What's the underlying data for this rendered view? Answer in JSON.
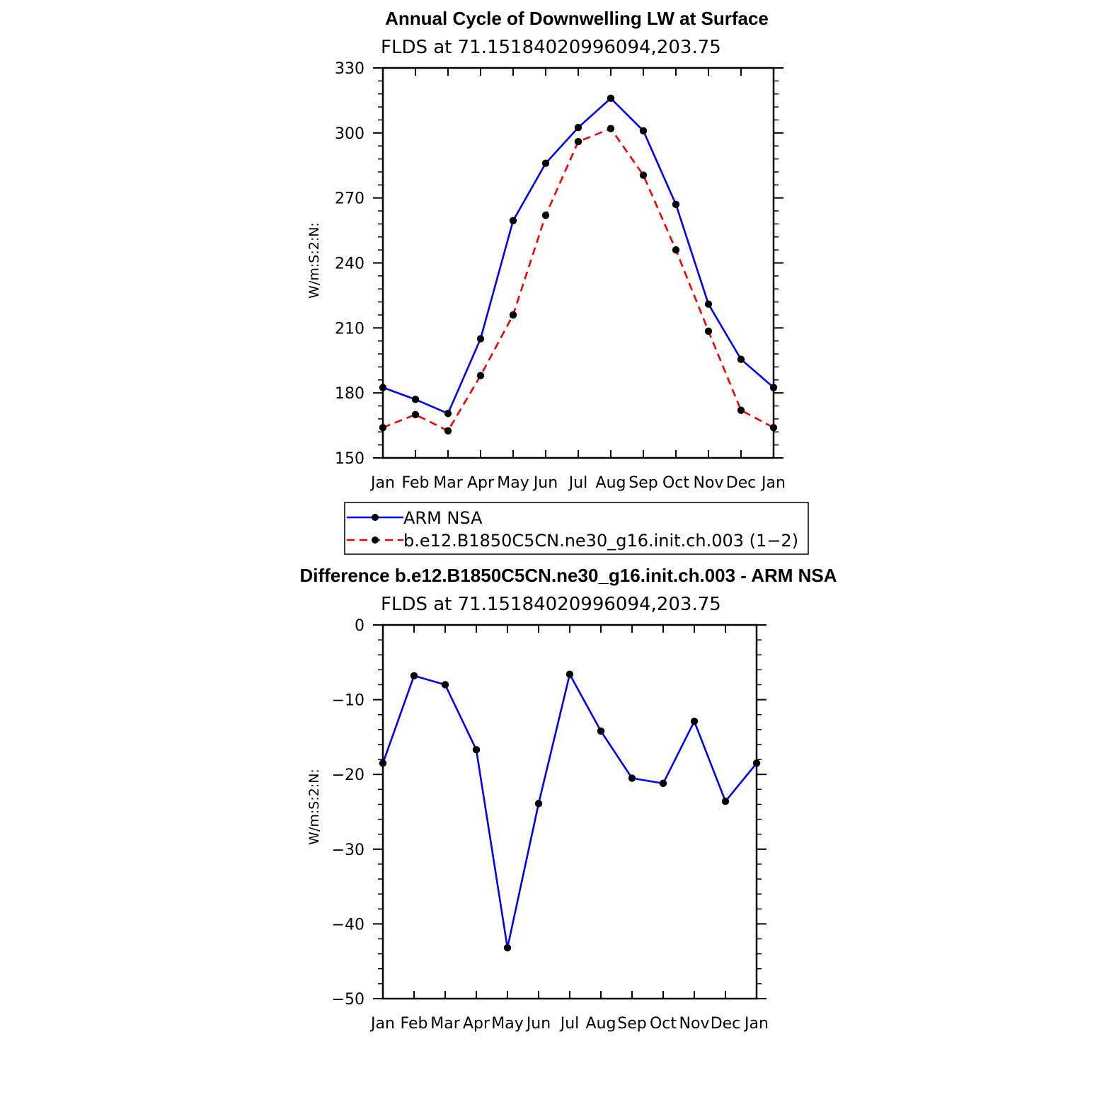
{
  "chart_data": [
    {
      "type": "line",
      "title": "Annual Cycle of Downwelling LW at Surface",
      "subtitle": "FLDS  at  71.15184020996094,203.75",
      "ylabel": "W/m:S:2:N:",
      "xlabel": "",
      "categories": [
        "Jan",
        "Feb",
        "Mar",
        "Apr",
        "May",
        "Jun",
        "Jul",
        "Aug",
        "Sep",
        "Oct",
        "Nov",
        "Dec",
        "Jan"
      ],
      "ylim": [
        150,
        330
      ],
      "yticks": [
        150,
        180,
        210,
        240,
        270,
        300,
        330
      ],
      "yticklabels": [
        "150",
        "180",
        "210",
        "240",
        "270",
        "300",
        "330"
      ],
      "grid": false,
      "series": [
        {
          "name": "ARM  NSA",
          "color": "#0000ee",
          "dash": "solid",
          "values": [
            182.5,
            177,
            170.5,
            205,
            259.5,
            286,
            302.5,
            316,
            301,
            267,
            221,
            195.5,
            182.5
          ]
        },
        {
          "name": "b.e12.B1850C5CN.ne30_g16.init.ch.003  (1−2)",
          "color": "#ee0000",
          "dash": "dashed",
          "values": [
            164,
            170,
            162.5,
            188,
            216,
            262,
            296,
            302,
            280.5,
            246,
            208.5,
            172,
            164
          ]
        }
      ],
      "legend": {
        "placement": "below",
        "entries": [
          "ARM  NSA",
          "b.e12.B1850C5CN.ne30_g16.init.ch.003  (1−2)"
        ]
      }
    },
    {
      "type": "line",
      "title": "Difference b.e12.B1850C5CN.ne30_g16.init.ch.003 - ARM NSA",
      "subtitle": "FLDS  at  71.15184020996094,203.75",
      "ylabel": "W/m:S:2:N:",
      "xlabel": "",
      "categories": [
        "Jan",
        "Feb",
        "Mar",
        "Apr",
        "May",
        "Jun",
        "Jul",
        "Aug",
        "Sep",
        "Oct",
        "Nov",
        "Dec",
        "Jan"
      ],
      "ylim": [
        -50,
        0
      ],
      "yticks": [
        -50,
        -40,
        -30,
        -20,
        -10,
        0
      ],
      "yticklabels": [
        "−50",
        "−40",
        "−30",
        "−20",
        "−10",
        "0"
      ],
      "grid": false,
      "series": [
        {
          "name": "Difference",
          "color": "#0000ee",
          "dash": "solid",
          "values": [
            -18.5,
            -6.8,
            -8,
            -16.7,
            -43.2,
            -23.9,
            -6.6,
            -14.2,
            -20.5,
            -21.2,
            -12.9,
            -23.6,
            -18.5
          ]
        }
      ]
    }
  ]
}
